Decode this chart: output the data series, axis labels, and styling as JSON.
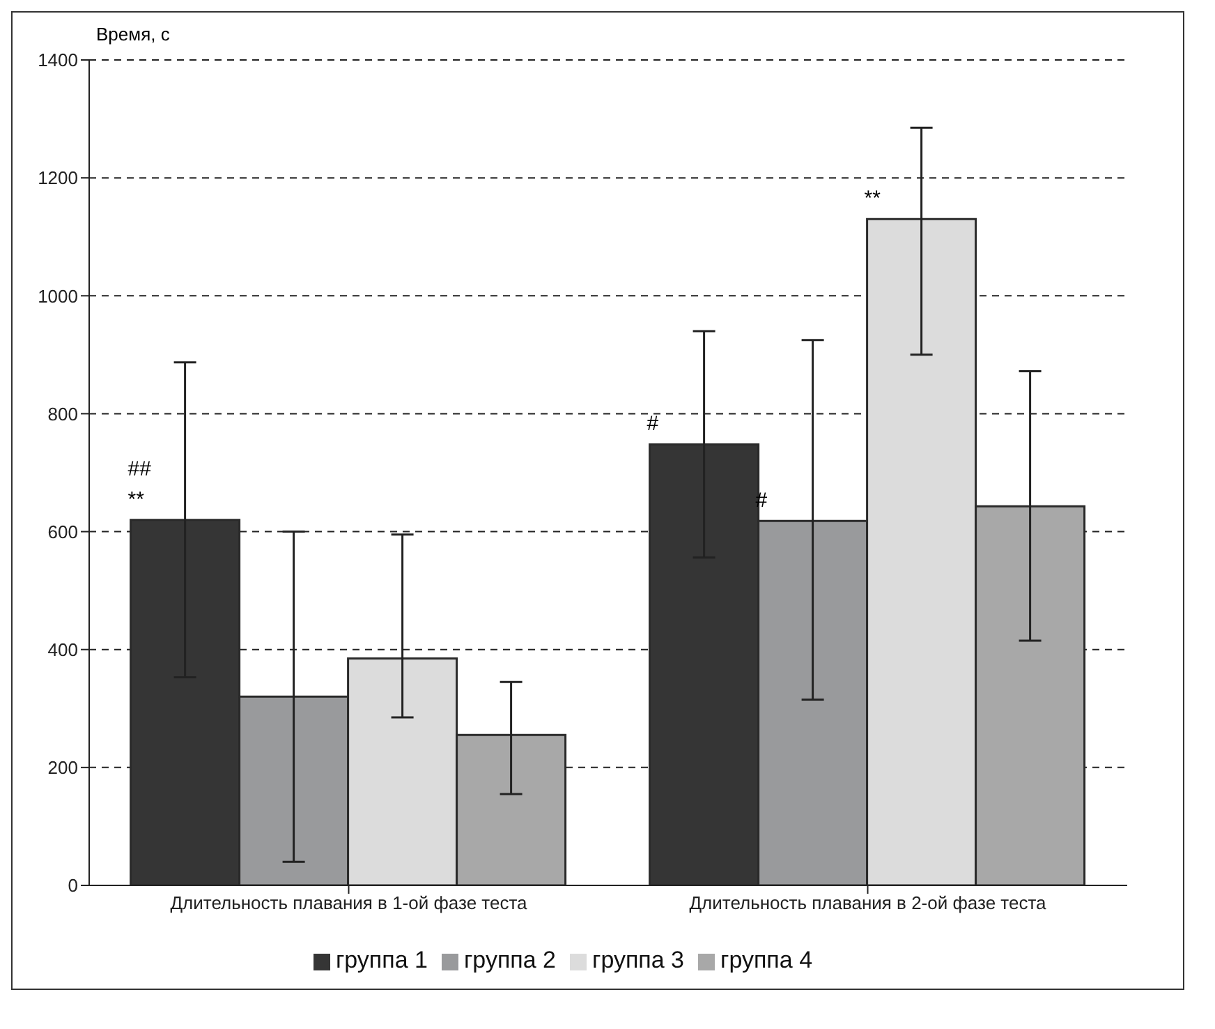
{
  "chart_data": {
    "type": "bar",
    "ylabel": "Время, с",
    "categories": [
      "Длительность плавания в 1-ой фазе теста",
      "Длительность плавания в 2-ой фазе теста"
    ],
    "series": [
      {
        "name": "группа 1",
        "color": "#353535",
        "values": [
          620,
          748
        ],
        "errors": [
          267,
          192
        ]
      },
      {
        "name": "группа 2",
        "color": "#999a9c",
        "values": [
          320,
          618
        ],
        "errors": [
          [
            40,
            600
          ],
          [
            315,
            925
          ]
        ]
      },
      {
        "name": "группа 3",
        "color": "#dcdcdc",
        "values": [
          385,
          1130
        ],
        "errors": [
          [
            285,
            595
          ],
          [
            900,
            1285
          ]
        ]
      },
      {
        "name": "группа 4",
        "color": "#a8a8a8",
        "values": [
          255,
          643
        ],
        "errors": [
          [
            155,
            345
          ],
          [
            415,
            872
          ]
        ]
      }
    ],
    "ylim": [
      0,
      1400
    ],
    "yticks": [
      0,
      200,
      400,
      600,
      800,
      1000,
      1200,
      1400
    ],
    "grid": "y",
    "legend": "bottom",
    "annotations": [
      "**",
      "##",
      "#",
      "#",
      "**"
    ]
  }
}
